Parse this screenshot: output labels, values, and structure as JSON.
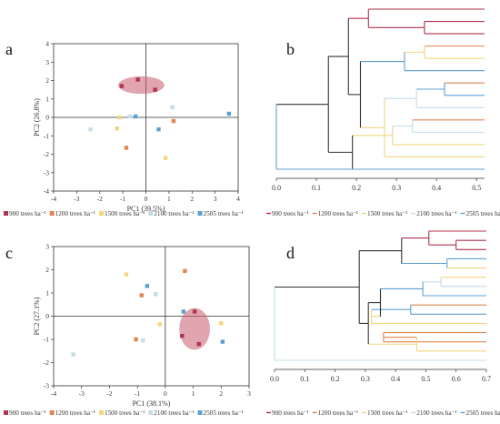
{
  "colors": {
    "t900": "#b0334f",
    "t1200": "#e08552",
    "t1500": "#f2d67f",
    "t2100": "#c3dde6",
    "t2505": "#5c9fd0",
    "ellipse": "#c75b6e",
    "tree": "#333333",
    "axis": "#333333"
  },
  "chart_data": [
    {
      "type": "scatter",
      "panel_label": "a",
      "xlabel": "PC1 (39.5%)",
      "ylabel": "PC2 (26.8%)",
      "xlim": [
        -4,
        4
      ],
      "ylim": [
        -4,
        4
      ],
      "xticks": [
        "-4",
        "-3",
        "-2",
        "-1",
        "0",
        "1",
        "2",
        "3",
        "4"
      ],
      "yticks": [
        "-4",
        "-3",
        "-2",
        "-1",
        "0",
        "1",
        "2",
        "3",
        "4"
      ],
      "ellipse": {
        "cx": -0.2,
        "cy": 1.75,
        "rx": 1.0,
        "ry": 0.48
      },
      "legend": [
        {
          "key": "t900",
          "label": "900 trees ha⁻¹"
        },
        {
          "key": "t1200",
          "label": "1200 trees ha⁻¹"
        },
        {
          "key": "t1500",
          "label": "1500 trees ha⁻¹"
        },
        {
          "key": "t2100",
          "label": "2100 trees ha⁻¹"
        },
        {
          "key": "t2505",
          "label": "2505 trees ha⁻¹"
        }
      ],
      "points": [
        {
          "series": "t900",
          "x": -1.05,
          "y": 1.7
        },
        {
          "series": "t900",
          "x": -0.35,
          "y": 2.05
        },
        {
          "series": "t900",
          "x": 0.4,
          "y": 1.5
        },
        {
          "series": "t1200",
          "x": 1.2,
          "y": -0.2
        },
        {
          "series": "t1200",
          "x": -0.85,
          "y": -1.65
        },
        {
          "series": "t1500",
          "x": -1.15,
          "y": 0.0
        },
        {
          "series": "t1500",
          "x": -1.25,
          "y": -0.6
        },
        {
          "series": "t1500",
          "x": 0.85,
          "y": -2.2
        },
        {
          "series": "t2100",
          "x": -2.4,
          "y": -0.65
        },
        {
          "series": "t2100",
          "x": -0.7,
          "y": 0.05
        },
        {
          "series": "t2100",
          "x": 1.15,
          "y": 0.55
        },
        {
          "series": "t2505",
          "x": -0.45,
          "y": 0.05
        },
        {
          "series": "t2505",
          "x": 0.55,
          "y": -0.65
        },
        {
          "series": "t2505",
          "x": 3.6,
          "y": 0.2
        }
      ]
    },
    {
      "type": "dendrogram",
      "panel_label": "b",
      "xlim": [
        0,
        0.52
      ],
      "xticks": [
        "0.0",
        "0.1",
        "0.2",
        "0.3",
        "0.4",
        "0.5"
      ],
      "legend": [
        {
          "key": "t900",
          "label": "900 trees ha⁻¹"
        },
        {
          "key": "t1200",
          "label": "1200 trees ha⁻¹"
        },
        {
          "key": "t1500",
          "label": "1500 trees ha⁻¹"
        },
        {
          "key": "t2100",
          "label": "2100 trees ha⁻¹"
        },
        {
          "key": "t2505",
          "label": "2505 trees ha⁻¹"
        }
      ],
      "leaves": [
        "t900",
        "t900",
        "t900",
        "t1200",
        "t1500",
        "t2505",
        "t1200",
        "t2505",
        "t2100",
        "t1200",
        "t2100",
        "t1500",
        "t1500",
        "t2505"
      ],
      "merges": [
        {
          "a": 1,
          "b": 2,
          "h": 0.37,
          "color": "t900"
        },
        {
          "a": 0,
          "b": "m0",
          "h": 0.23,
          "color": "t900"
        },
        {
          "a": 3,
          "b": 4,
          "h": 0.37,
          "color": "t1500"
        },
        {
          "a": "m2",
          "b": 5,
          "h": 0.32,
          "color": "t2505"
        },
        {
          "a": 6,
          "b": 7,
          "h": 0.42,
          "color": "t2505"
        },
        {
          "a": "m4",
          "b": 8,
          "h": 0.35,
          "color": "t2100"
        },
        {
          "a": 9,
          "b": 10,
          "h": 0.34,
          "color": "t2100"
        },
        {
          "a": "m6",
          "b": 11,
          "h": 0.29,
          "color": "t1500"
        },
        {
          "a": "m5",
          "b": 12,
          "h": 0.27,
          "color": "t1500"
        },
        {
          "a": "m3",
          "b": "m8",
          "h": 0.21,
          "color": "tree"
        },
        {
          "a": "m1",
          "b": "m9",
          "h": 0.18,
          "color": "tree"
        },
        {
          "a": "m7",
          "b": 13,
          "h": 0.19,
          "color": "tree"
        },
        {
          "a": "m10",
          "b": "m11",
          "h": 0.13,
          "color": "tree"
        },
        {
          "a": "m12",
          "b": 13,
          "h": 0.0,
          "color": "t2505"
        }
      ]
    },
    {
      "type": "scatter",
      "panel_label": "c",
      "xlabel": "PC1 (38.1%)",
      "ylabel": "PC2 (27.1%)",
      "xlim": [
        -4,
        3
      ],
      "ylim": [
        -3,
        3
      ],
      "xticks": [
        "-4",
        "-3",
        "-2",
        "-1",
        "0",
        "1",
        "2",
        "3"
      ],
      "yticks": [
        "-3",
        "-2",
        "-1",
        "0",
        "1",
        "2",
        "3"
      ],
      "ellipse": {
        "cx": 1.05,
        "cy": -0.55,
        "rx": 0.55,
        "ry": 0.9
      },
      "legend": [
        {
          "key": "t900",
          "label": "900 trees ha⁻¹"
        },
        {
          "key": "t1200",
          "label": "1200 trees ha⁻¹"
        },
        {
          "key": "t1500",
          "label": "1500 trees ha⁻¹"
        },
        {
          "key": "t2100",
          "label": "2100 trees ha⁻¹"
        },
        {
          "key": "t2505",
          "label": "2505 trees ha⁻¹"
        }
      ],
      "points": [
        {
          "series": "t900",
          "x": 1.05,
          "y": 0.2
        },
        {
          "series": "t900",
          "x": 0.6,
          "y": -0.85
        },
        {
          "series": "t900",
          "x": 1.2,
          "y": -1.2
        },
        {
          "series": "t1200",
          "x": 0.7,
          "y": 1.95
        },
        {
          "series": "t1200",
          "x": -0.85,
          "y": 0.9
        },
        {
          "series": "t1200",
          "x": -1.05,
          "y": -1.0
        },
        {
          "series": "t1500",
          "x": -1.4,
          "y": 1.8
        },
        {
          "series": "t1500",
          "x": -0.2,
          "y": -0.35
        },
        {
          "series": "t1500",
          "x": 2.0,
          "y": -0.3
        },
        {
          "series": "t2100",
          "x": -0.35,
          "y": 0.95
        },
        {
          "series": "t2100",
          "x": -0.8,
          "y": -1.05
        },
        {
          "series": "t2100",
          "x": -3.3,
          "y": -1.65
        },
        {
          "series": "t2505",
          "x": -0.65,
          "y": 1.3
        },
        {
          "series": "t2505",
          "x": 0.65,
          "y": 0.2
        },
        {
          "series": "t2505",
          "x": 2.05,
          "y": -1.1
        }
      ]
    },
    {
      "type": "dendrogram",
      "panel_label": "d",
      "xlim": [
        0,
        0.7
      ],
      "xticks": [
        "0.0",
        "0.1",
        "0.2",
        "0.3",
        "0.4",
        "0.5",
        "0.6",
        "0.7"
      ],
      "legend": [
        {
          "key": "t900",
          "label": "900 trees ha⁻¹"
        },
        {
          "key": "t1200",
          "label": "1200 trees ha⁻¹"
        },
        {
          "key": "t1500",
          "label": "1500 trees ha⁻¹"
        },
        {
          "key": "t2100",
          "label": "2100 trees ha⁻¹"
        },
        {
          "key": "t2505",
          "label": "2505 trees ha⁻¹"
        }
      ],
      "leaves": [
        "t900",
        "t900",
        "t900",
        "t2505",
        "t1500",
        "t1500",
        "t2100",
        "t2505",
        "t1200",
        "t2505",
        "t1500",
        "t1200",
        "t1200",
        "t1500",
        "t2100"
      ],
      "merges": [
        {
          "a": 1,
          "b": 2,
          "h": 0.6,
          "color": "t900"
        },
        {
          "a": 0,
          "b": "m0",
          "h": 0.51,
          "color": "t900"
        },
        {
          "a": 3,
          "b": 4,
          "h": 0.57,
          "color": "t2505"
        },
        {
          "a": "m1",
          "b": "m2",
          "h": 0.42,
          "color": "tree"
        },
        {
          "a": 5,
          "b": 6,
          "h": 0.55,
          "color": "t2100"
        },
        {
          "a": "m4",
          "b": 7,
          "h": 0.49,
          "color": "t2505"
        },
        {
          "a": 8,
          "b": 9,
          "h": 0.45,
          "color": "t2505"
        },
        {
          "a": "m6",
          "b": 10,
          "h": 0.32,
          "color": "t1500"
        },
        {
          "a": "m5",
          "b": "m7",
          "h": 0.35,
          "color": "tree"
        },
        {
          "a": 11,
          "b": 12,
          "h": 0.36,
          "color": "t1200"
        },
        {
          "a": "m9",
          "b": 13,
          "h": 0.47,
          "color": "t1500"
        },
        {
          "a": "m8",
          "b": "m10",
          "h": 0.31,
          "color": "tree"
        },
        {
          "a": "m3",
          "b": "m11",
          "h": 0.28,
          "color": "tree"
        },
        {
          "a": "m12",
          "b": 14,
          "h": 0.0,
          "color": "t2100"
        }
      ]
    }
  ]
}
